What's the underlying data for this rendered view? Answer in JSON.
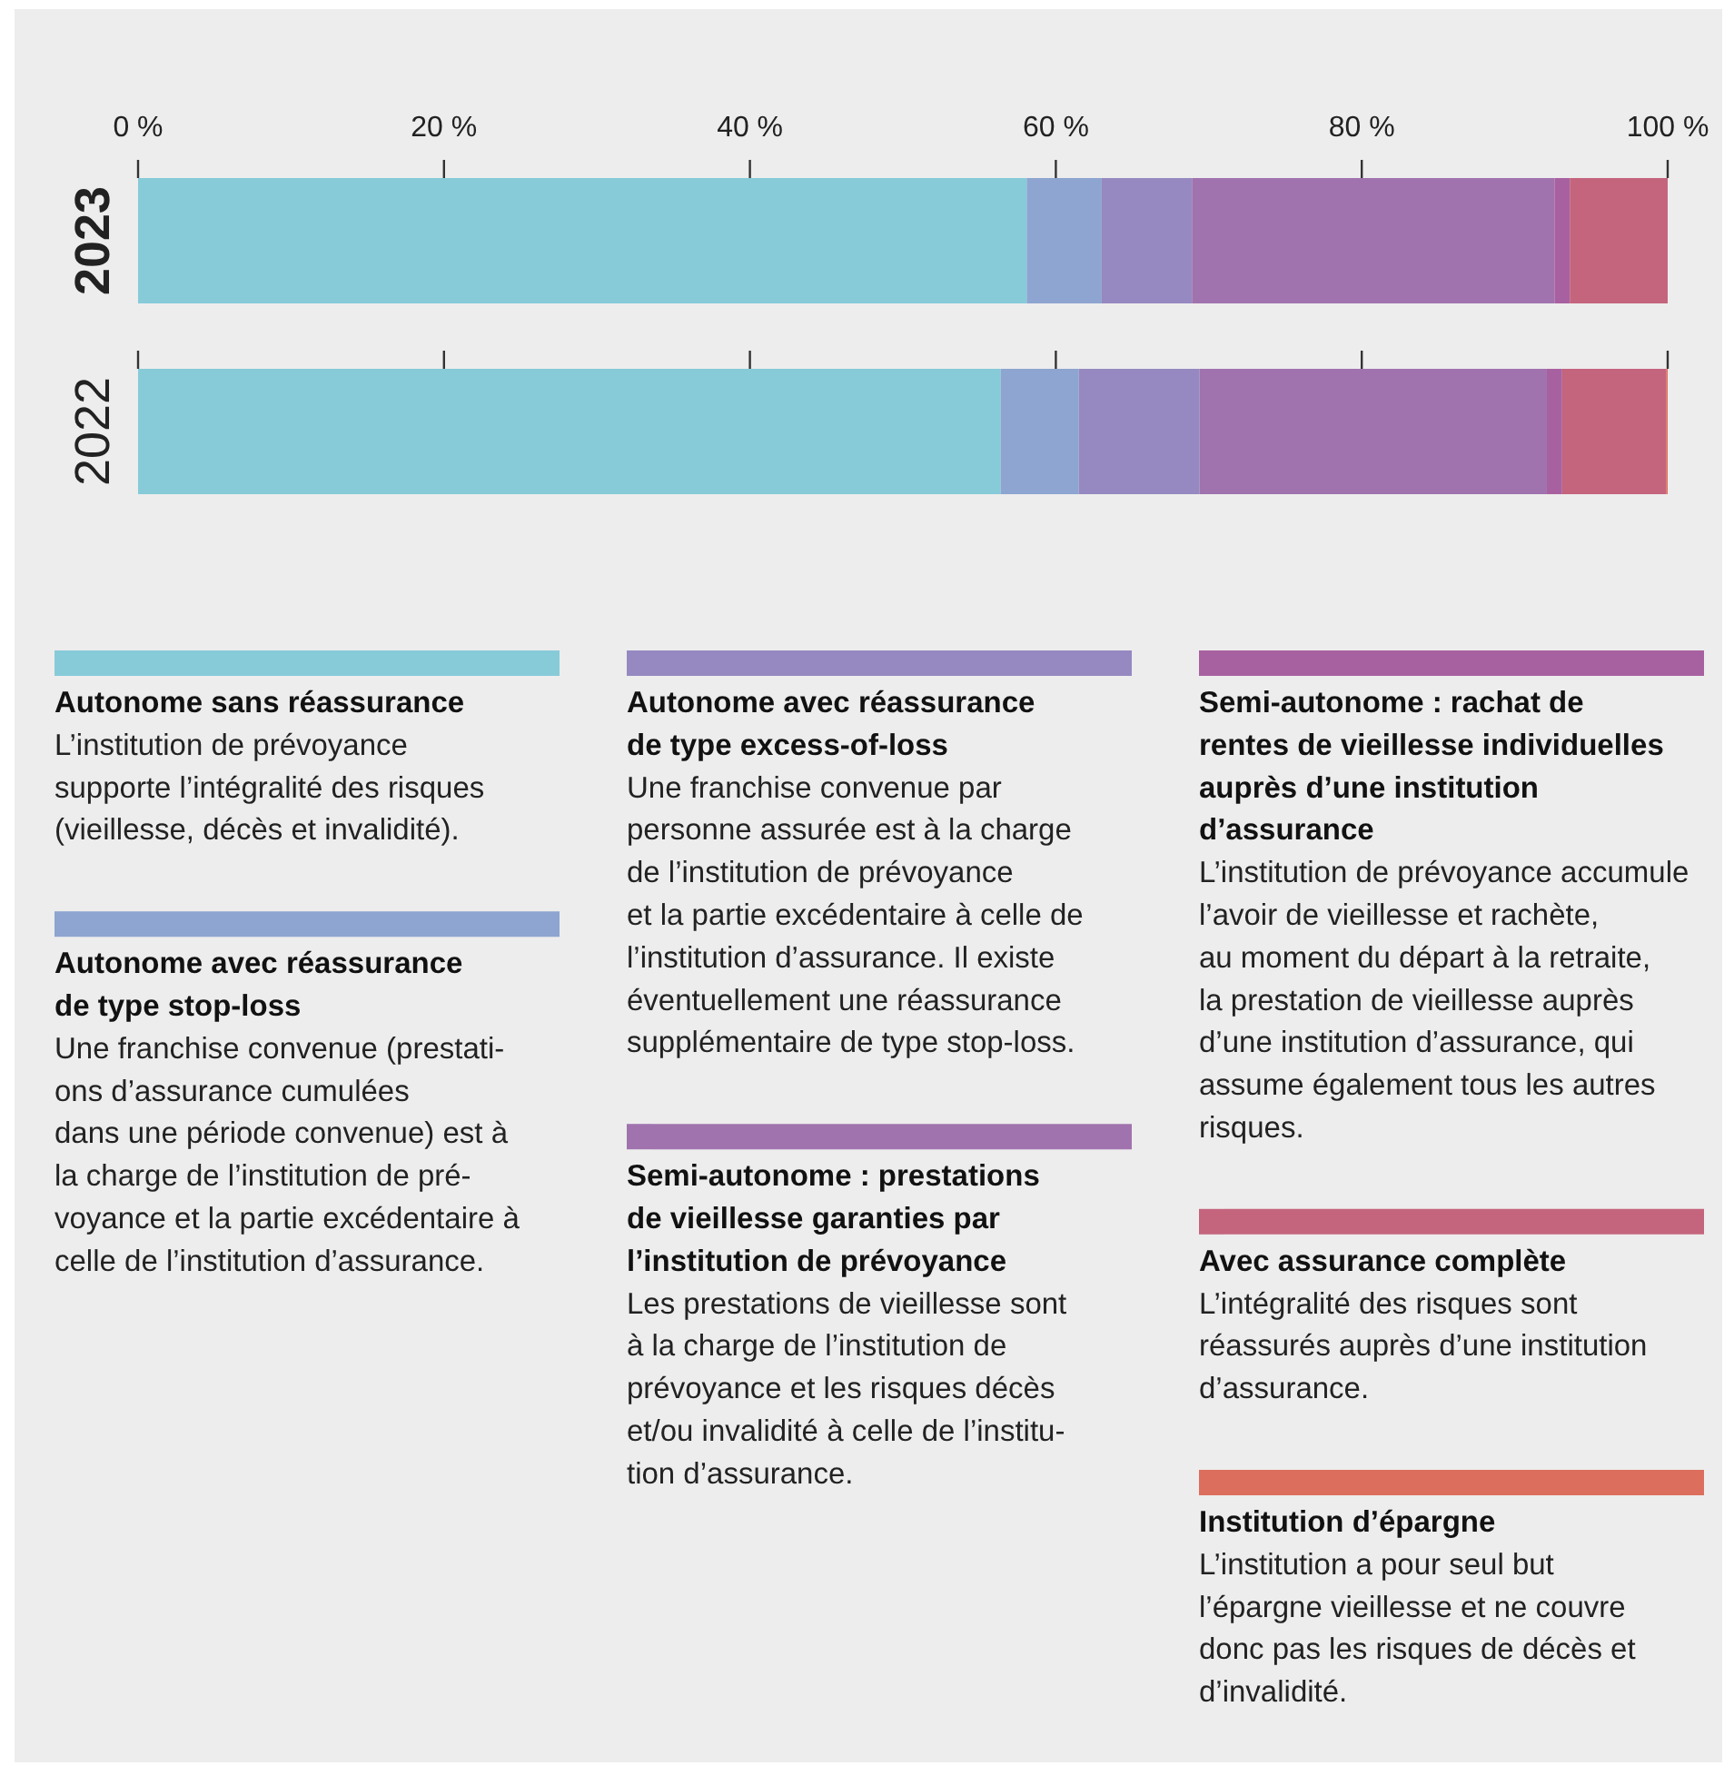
{
  "chart_data": {
    "type": "bar",
    "orientation": "horizontal",
    "stacked": true,
    "categories": [
      "2023",
      "2022"
    ],
    "xlim": [
      0,
      100
    ],
    "xticks": [
      {
        "value": 0,
        "label": "0 %"
      },
      {
        "value": 20,
        "label": "20 %"
      },
      {
        "value": 40,
        "label": "40 %"
      },
      {
        "value": 60,
        "label": "60 %"
      },
      {
        "value": 80,
        "label": "80 %"
      },
      {
        "value": 100,
        "label": "100 %"
      }
    ],
    "grid": false,
    "legend": "bottom",
    "tick_labels": true,
    "series": [
      {
        "name": "Autonome sans réassurance",
        "color": "#87cbd9",
        "values": [
          58.1,
          56.4
        ]
      },
      {
        "name": "Autonome avec réassurance\nde type stop-loss",
        "color": "#8da5d0",
        "values": [
          4.9,
          5.1
        ]
      },
      {
        "name": "Autonome avec réassurance\nde type excess-of-loss",
        "color": "#9689c1",
        "values": [
          5.9,
          7.9
        ]
      },
      {
        "name": "Semi-autonome : prestations\nde vieillesse garanties par\nl’institution de prévoyance",
        "color": "#a073ae",
        "values": [
          23.7,
          22.7
        ]
      },
      {
        "name": "Semi-autonome : rachat de\nrentes de vieillesse individuelles\nauprès d’une institution\nd’assurance",
        "color": "#a861a0",
        "values": [
          1.0,
          1.0
        ]
      },
      {
        "name": "Avec assurance complète",
        "color": "#c4647d",
        "values": [
          6.4,
          6.8
        ]
      },
      {
        "name": "Institution d’épargne",
        "color": "#dc6e5d",
        "values": [
          0,
          0.1
        ]
      }
    ],
    "annotations": [
      "L’institution de prévoyance\nsupporte l’intégralité des risques\n(vieillesse, décès et invalidité).",
      "Une franchise convenue (prestati-\nons d’assurance cumulées\ndans une période convenue) est à\nla charge de l’institution de pré-\nvoyance et la partie excédentaire à\ncelle de l’institution d’assurance.",
      "Une franchise convenue par\npersonne assurée est à la charge\nde l’institution de prévoyance\net la partie excédentaire à celle de\nl’institution d’assurance. Il existe\néventuellement une réassurance\nsupplémentaire de type stop-loss.",
      "Les prestations de vieillesse sont\nà la charge de l’institution de\nprévoyance et les risques décès\net/ou invalidité à celle de l’institu-\ntion d’assurance.",
      "L’institution de prévoyance accumule\nl’avoir de vieillesse et rachète,\nau moment du départ à la retraite,\nla prestation de vieillesse auprès\nd’une institution d’assurance, qui\nassume également tous les autres\nrisques.",
      "L’intégralité des risques sont\nréassurés auprès d’une institution\nd’assurance.",
      "L’institution a pour seul but\nl’épargne vieillesse et ne couvre\ndonc pas les risques de décès et\nd’invalidité."
    ]
  }
}
